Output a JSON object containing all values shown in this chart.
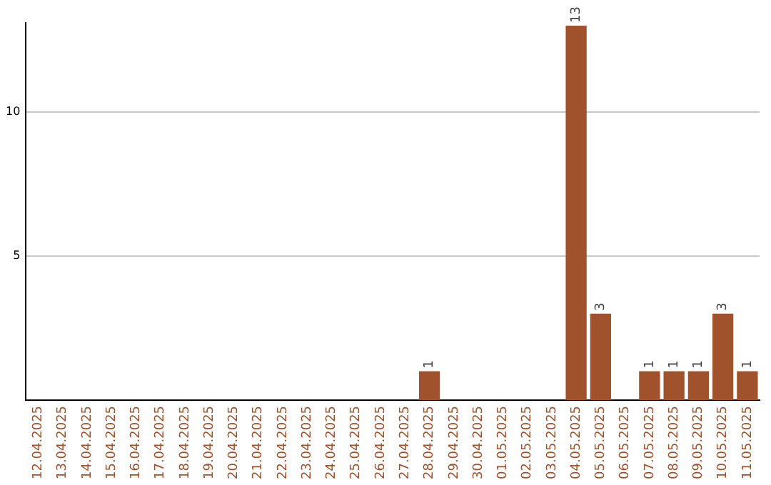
{
  "chart_data": {
    "type": "bar",
    "categories": [
      "12.04.2025",
      "13.04.2025",
      "14.04.2025",
      "15.04.2025",
      "16.04.2025",
      "17.04.2025",
      "18.04.2025",
      "19.04.2025",
      "20.04.2025",
      "21.04.2025",
      "22.04.2025",
      "23.04.2025",
      "24.04.2025",
      "25.04.2025",
      "26.04.2025",
      "27.04.2025",
      "28.04.2025",
      "29.04.2025",
      "30.04.2025",
      "01.05.2025",
      "02.05.2025",
      "03.05.2025",
      "04.05.2025",
      "05.05.2025",
      "06.05.2025",
      "07.05.2025",
      "08.05.2025",
      "09.05.2025",
      "10.05.2025",
      "11.05.2025"
    ],
    "values": [
      0,
      0,
      0,
      0,
      0,
      0,
      0,
      0,
      0,
      0,
      0,
      0,
      0,
      0,
      0,
      0,
      1,
      0,
      0,
      0,
      0,
      0,
      13,
      3,
      0,
      1,
      1,
      1,
      3,
      1
    ],
    "value_labels": [
      null,
      null,
      null,
      null,
      null,
      null,
      null,
      null,
      null,
      null,
      null,
      null,
      null,
      null,
      null,
      null,
      "1",
      null,
      null,
      null,
      null,
      null,
      "13",
      "3",
      null,
      "1",
      "1",
      "1",
      "3",
      "1"
    ],
    "color": "#a0522d",
    "ylim": [
      0,
      13.1
    ],
    "yticks": [
      5,
      10
    ],
    "grid": "y",
    "legend": false
  }
}
